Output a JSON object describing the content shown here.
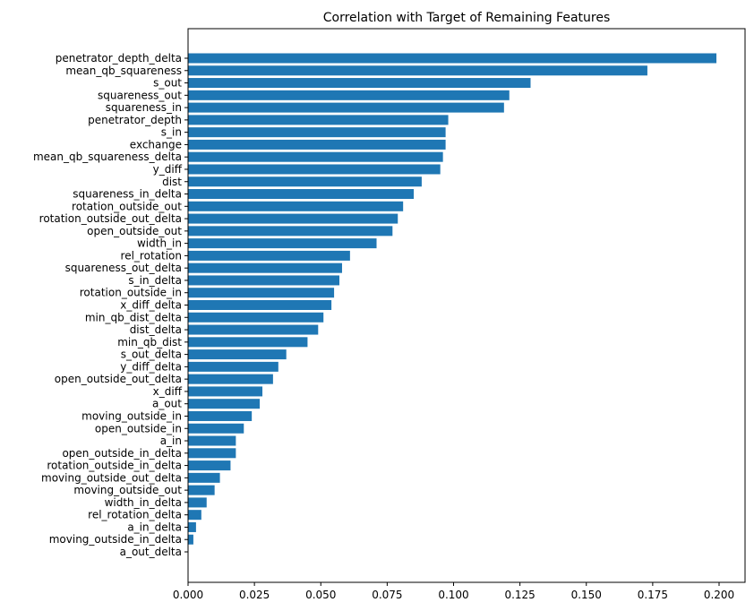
{
  "chart_data": {
    "type": "bar",
    "orientation": "horizontal",
    "title": "Correlation with Target of Remaining Features",
    "xlabel": "",
    "ylabel": "",
    "xlim": [
      0.0,
      0.21
    ],
    "xticks": [
      "0.000",
      "0.025",
      "0.050",
      "0.075",
      "0.100",
      "0.125",
      "0.150",
      "0.175",
      "0.200"
    ],
    "grid": false,
    "legend": "none",
    "bar_color": "#1f77b4",
    "categories": [
      "penetrator_depth_delta",
      "mean_qb_squareness",
      "s_out",
      "squareness_out",
      "squareness_in",
      "penetrator_depth",
      "s_in",
      "exchange",
      "mean_qb_squareness_delta",
      "y_diff",
      "dist",
      "squareness_in_delta",
      "rotation_outside_out",
      "rotation_outside_out_delta",
      "open_outside_out",
      "width_in",
      "rel_rotation",
      "squareness_out_delta",
      "s_in_delta",
      "rotation_outside_in",
      "x_diff_delta",
      "min_qb_dist_delta",
      "dist_delta",
      "min_qb_dist",
      "s_out_delta",
      "y_diff_delta",
      "open_outside_out_delta",
      "x_diff",
      "a_out",
      "moving_outside_in",
      "open_outside_in",
      "a_in",
      "open_outside_in_delta",
      "rotation_outside_in_delta",
      "moving_outside_out_delta",
      "moving_outside_out",
      "width_in_delta",
      "rel_rotation_delta",
      "a_in_delta",
      "moving_outside_in_delta",
      "a_out_delta"
    ],
    "values": [
      0.199,
      0.173,
      0.129,
      0.121,
      0.119,
      0.098,
      0.097,
      0.097,
      0.096,
      0.095,
      0.088,
      0.085,
      0.081,
      0.079,
      0.077,
      0.071,
      0.061,
      0.058,
      0.057,
      0.055,
      0.054,
      0.051,
      0.049,
      0.045,
      0.037,
      0.034,
      0.032,
      0.028,
      0.027,
      0.024,
      0.021,
      0.018,
      0.018,
      0.016,
      0.012,
      0.01,
      0.007,
      0.005,
      0.003,
      0.002,
      0.0
    ]
  }
}
